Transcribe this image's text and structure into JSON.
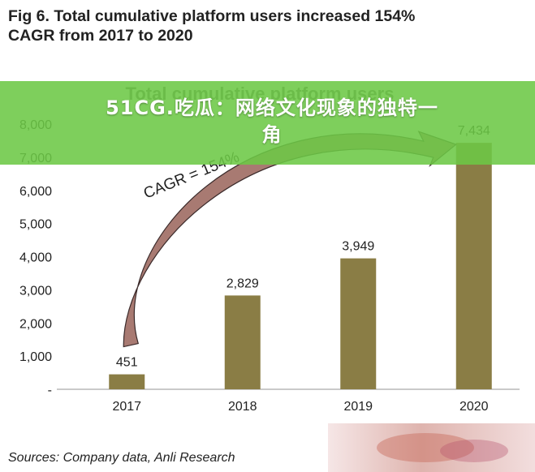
{
  "figure": {
    "title_line1": "Fig 6. Total cumulative platform users increased 154%",
    "title_line2": "CAGR from 2017 to 2020",
    "source": "Sources: Company data, Anli Research"
  },
  "overlay": {
    "text_line1": "51CG.吃瓜：网络文化现象的独特一",
    "text_line2": "角",
    "color": "#6cc846"
  },
  "chart_data": {
    "type": "bar",
    "title": "Total cumulative platform users",
    "categories": [
      "2017",
      "2018",
      "2019",
      "2020"
    ],
    "values": [
      451,
      2829,
      3949,
      7434
    ],
    "data_labels": [
      "451",
      "2,829",
      "3,949",
      "7,434"
    ],
    "ylim": [
      0,
      8000
    ],
    "yticks": [
      0,
      1000,
      2000,
      3000,
      4000,
      5000,
      6000,
      7000,
      8000
    ],
    "ytick_labels": [
      "-",
      "1,000",
      "2,000",
      "3,000",
      "4,000",
      "5,000",
      "6,000",
      "7,000",
      "8,000"
    ],
    "xlabel": "",
    "ylabel": "",
    "grid": false,
    "legend": "none",
    "bar_color": "#8a7d45",
    "annotation": {
      "text": "CAGR = 154%",
      "from_category": "2017",
      "to_category": "2020",
      "arrow_color": "#a87a72"
    }
  }
}
